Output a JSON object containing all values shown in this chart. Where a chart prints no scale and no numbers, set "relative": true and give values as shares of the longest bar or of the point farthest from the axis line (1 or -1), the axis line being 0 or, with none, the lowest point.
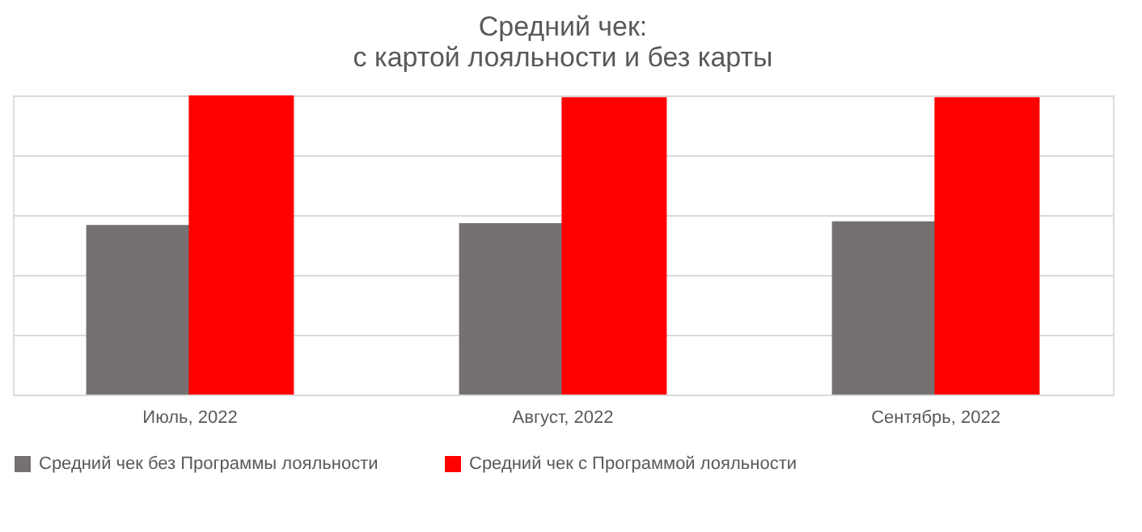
{
  "chart_data": {
    "type": "bar",
    "title": "Средний чек:\nс картой лояльности и без карты",
    "categories": [
      "Июль, 2022",
      "Август, 2022",
      "Сентябрь, 2022"
    ],
    "relative": true,
    "grid": "y",
    "legend": "bottom",
    "series": [
      {
        "name": "Средний чек без Программы лояльности",
        "color": "#767171",
        "values": [
          0.567,
          0.573,
          0.579
        ]
      },
      {
        "name": "Средний чек с Программой лояльности",
        "color": "#ff0000",
        "values": [
          1,
          0.994,
          0.994
        ]
      }
    ]
  }
}
